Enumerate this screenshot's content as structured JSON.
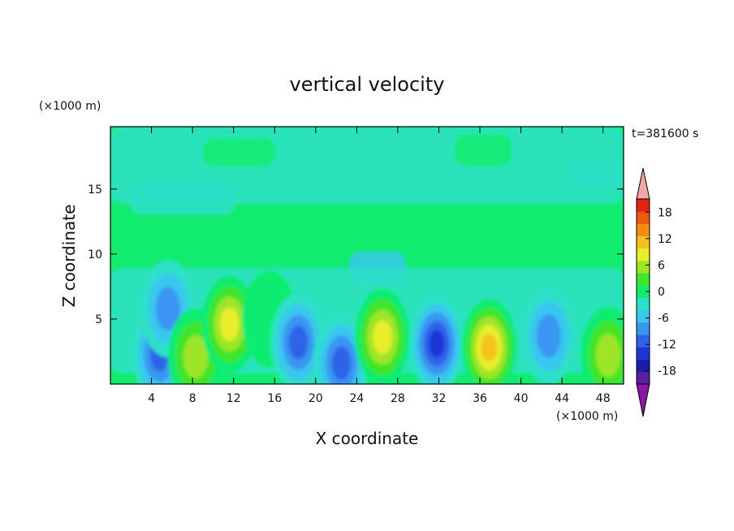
{
  "chart_data": {
    "type": "heatmap",
    "title": "vertical velocity",
    "xlabel": "X coordinate",
    "ylabel": "Z coordinate",
    "x_unit": "(×1000 m)",
    "y_unit": "(×1000 m)",
    "time_label": "t=381600 s",
    "xlim": [
      0,
      50
    ],
    "ylim": [
      0,
      19.8
    ],
    "x_ticks": [
      4,
      8,
      12,
      16,
      20,
      24,
      28,
      32,
      36,
      40,
      44,
      48
    ],
    "y_ticks": [
      5,
      10,
      15
    ],
    "colorbar": {
      "levels": [
        -21,
        -18,
        -15,
        -12,
        -9,
        -6,
        -3,
        0,
        3,
        6,
        9,
        12,
        15,
        18,
        21
      ],
      "tick_values": [
        18,
        12,
        6,
        0,
        -6,
        -12,
        -18
      ],
      "colors": [
        "#5a1fa0",
        "#1c1ca8",
        "#1f35d6",
        "#2f63e8",
        "#3a95f2",
        "#39c7ee",
        "#2de0c8",
        "#11ec6f",
        "#3fe52a",
        "#9ee52a",
        "#e8ee2a",
        "#f3c21c",
        "#f08e14",
        "#ec5a10",
        "#e02414"
      ],
      "over_color": "#f4a6a6",
      "under_color": "#8c14a6"
    },
    "grid": false,
    "cells": [
      {
        "x": 4.8,
        "z": 2.3,
        "value": -13
      },
      {
        "x": 5.6,
        "z": 5.8,
        "value": -8
      },
      {
        "x": 8.3,
        "z": 2.1,
        "value": 9
      },
      {
        "x": 11.6,
        "z": 4.6,
        "value": 12
      },
      {
        "x": 15.5,
        "z": 5.0,
        "value": 3
      },
      {
        "x": 18.3,
        "z": 3.2,
        "value": -12
      },
      {
        "x": 22.5,
        "z": 1.6,
        "value": -13
      },
      {
        "x": 26.5,
        "z": 3.6,
        "value": 12
      },
      {
        "x": 31.8,
        "z": 3.1,
        "value": -16
      },
      {
        "x": 36.9,
        "z": 2.8,
        "value": 16
      },
      {
        "x": 42.7,
        "z": 3.7,
        "value": -10
      },
      {
        "x": 48.5,
        "z": 2.2,
        "value": 9
      }
    ]
  }
}
